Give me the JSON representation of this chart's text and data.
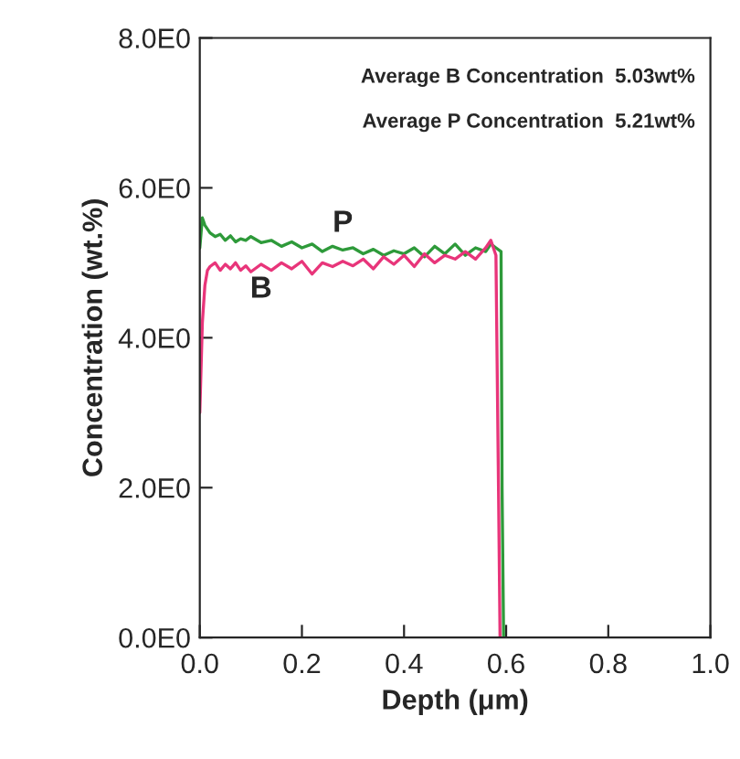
{
  "chart_data": {
    "type": "line",
    "xlabel": "Depth (μm)",
    "ylabel": "Concentration (wt.%)",
    "xlim": [
      0,
      1.0
    ],
    "ylim": [
      0,
      8
    ],
    "xticks": [
      {
        "value": 0,
        "label": "0.0"
      },
      {
        "value": 0.2,
        "label": "0.2"
      },
      {
        "value": 0.4,
        "label": "0.4"
      },
      {
        "value": 0.6,
        "label": "0.6"
      },
      {
        "value": 0.8,
        "label": "0.8"
      },
      {
        "value": 1.0,
        "label": "1.0"
      }
    ],
    "yticks": [
      {
        "value": 0,
        "label": "0.0E0"
      },
      {
        "value": 2,
        "label": "2.0E0"
      },
      {
        "value": 4,
        "label": "4.0E0"
      },
      {
        "value": 6,
        "label": "6.0E0"
      },
      {
        "value": 8,
        "label": "8.0E0"
      }
    ],
    "grid": false,
    "legend": false,
    "line_style": "solid",
    "marker": "none",
    "series": [
      {
        "color": "#2e9a3a",
        "x": [
          0.0,
          0.005,
          0.01,
          0.02,
          0.03,
          0.04,
          0.05,
          0.06,
          0.07,
          0.08,
          0.09,
          0.1,
          0.12,
          0.14,
          0.16,
          0.18,
          0.2,
          0.22,
          0.24,
          0.26,
          0.28,
          0.3,
          0.32,
          0.34,
          0.36,
          0.38,
          0.4,
          0.42,
          0.44,
          0.46,
          0.48,
          0.5,
          0.52,
          0.54,
          0.56,
          0.57,
          0.58,
          0.59,
          0.592,
          0.595
        ],
        "values": [
          5.2,
          5.6,
          5.5,
          5.4,
          5.35,
          5.38,
          5.3,
          5.36,
          5.28,
          5.32,
          5.3,
          5.35,
          5.27,
          5.3,
          5.22,
          5.28,
          5.2,
          5.25,
          5.15,
          5.22,
          5.17,
          5.2,
          5.12,
          5.18,
          5.1,
          5.16,
          5.12,
          5.2,
          5.08,
          5.22,
          5.12,
          5.25,
          5.1,
          5.2,
          5.15,
          5.25,
          5.2,
          5.15,
          2.0,
          0
        ]
      },
      {
        "color": "#e8357a",
        "x": [
          0.0,
          0.005,
          0.01,
          0.015,
          0.02,
          0.03,
          0.04,
          0.05,
          0.06,
          0.07,
          0.08,
          0.09,
          0.1,
          0.12,
          0.14,
          0.16,
          0.18,
          0.2,
          0.22,
          0.24,
          0.26,
          0.28,
          0.3,
          0.32,
          0.34,
          0.36,
          0.38,
          0.4,
          0.42,
          0.44,
          0.46,
          0.48,
          0.5,
          0.52,
          0.54,
          0.56,
          0.57,
          0.58,
          0.585,
          0.588
        ],
        "values": [
          3.0,
          4.2,
          4.7,
          4.9,
          4.95,
          5.0,
          4.9,
          4.98,
          4.92,
          5.0,
          4.9,
          4.96,
          4.88,
          4.98,
          4.9,
          5.0,
          4.92,
          5.02,
          4.85,
          5.0,
          4.95,
          5.02,
          4.96,
          5.05,
          4.92,
          5.08,
          4.98,
          5.1,
          4.95,
          5.12,
          5.0,
          5.1,
          5.05,
          5.15,
          5.05,
          5.2,
          5.3,
          5.1,
          2.0,
          0
        ]
      }
    ],
    "annotations": [
      "Average B Concentration  5.03wt%",
      "Average P Concentration  5.21wt%",
      "P",
      "B"
    ]
  }
}
